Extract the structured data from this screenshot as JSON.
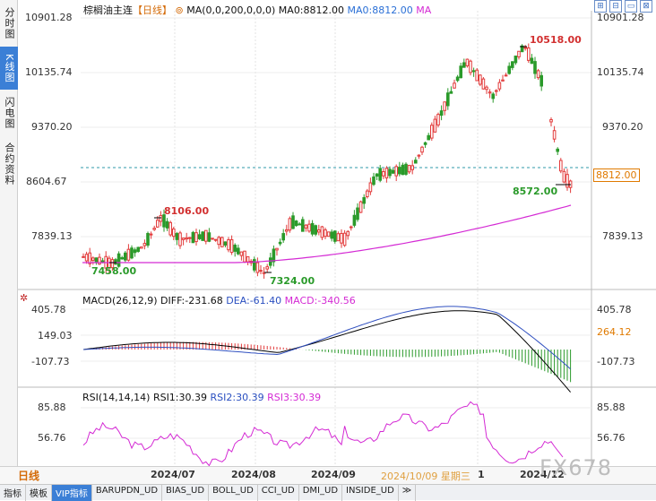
{
  "left_tabs": [
    "分时图",
    "K线图",
    "闪电图",
    "合约资料"
  ],
  "header": {
    "symbol": "棕榈油主连",
    "period": "【日线】",
    "ma_label": "MA(0,0,200,0,0,0)",
    "ma0": "MA0:8812.00",
    "ma0_2": "MA0:8812.00",
    "ma": "MA"
  },
  "window_icons": [
    "⊞",
    "⊟",
    "▭",
    "⊠"
  ],
  "price_axis": {
    "labels": [
      "10901.28",
      "10135.74",
      "9370.20",
      "8604.67",
      "7839.13"
    ],
    "current": "8812.00"
  },
  "annotations": {
    "high": "10518.00",
    "low1": "7458.00",
    "low2": "7324.00",
    "mid_high": "8106.00",
    "recent_low": "8572.00"
  },
  "macd": {
    "title": "MACD(26,12,9)",
    "diff": "DIFF:-231.68",
    "dea": "DEA:-61.40",
    "macd": "MACD:-340.56",
    "axis": [
      "405.78",
      "149.03",
      "-107.73"
    ],
    "axis_right": [
      "405.78",
      "264.12",
      "-107.73"
    ]
  },
  "rsi": {
    "title": "RSI(14,14,14)",
    "rsi1": "RSI1:30.39",
    "rsi2": "RSI2:30.39",
    "rsi3": "RSI3:30.39",
    "axis": [
      "85.88",
      "56.76"
    ]
  },
  "bottom": {
    "period": "日线",
    "dates": [
      "2024/07",
      "2024/08",
      "2024/09",
      "2024/10/09 星期三",
      "1",
      "2024/12"
    ]
  },
  "tabs": [
    "指标",
    "模板",
    "VIP指标",
    "BARUPDN_UD",
    "BIAS_UD",
    "BOLL_UD",
    "CCI_UD",
    "DMI_UD",
    "INSIDE_UD",
    "≫"
  ],
  "watermark": "FX678",
  "colors": {
    "up": "#e23b3b",
    "down": "#2a9a2a",
    "ma": "#d42ad4",
    "diff": "#000000",
    "dea": "#3050c0",
    "macd_text": "#d42ad4",
    "rsi": "#d42ad4"
  }
}
